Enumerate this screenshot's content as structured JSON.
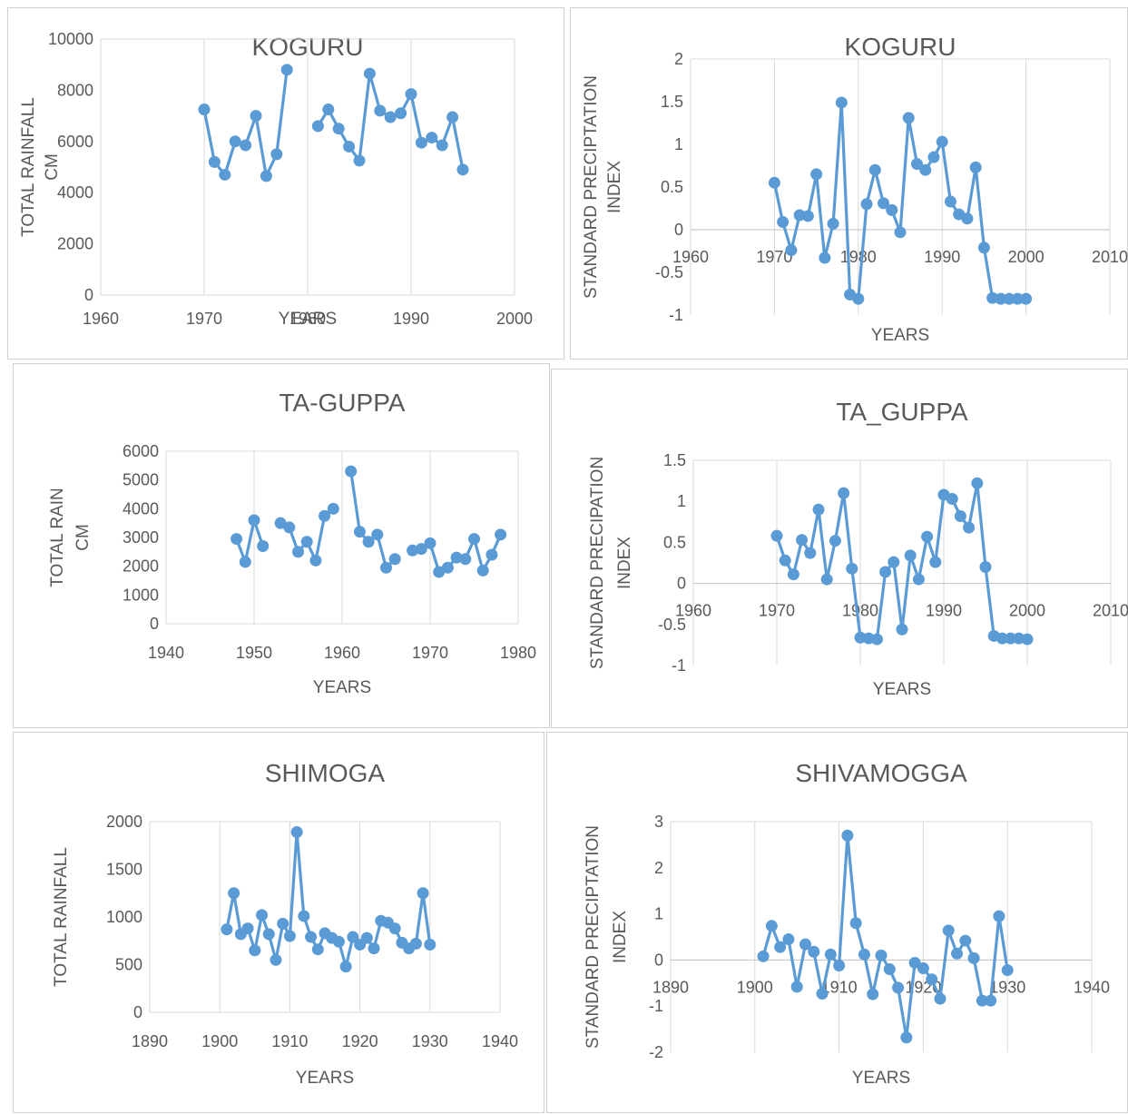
{
  "chart_data": [
    {
      "type": "line",
      "title": "KOGURU",
      "xlabel": "YEARS",
      "ylabel": [
        "TOTAL RAINFALL",
        "CM"
      ],
      "xlim": [
        1960,
        2000
      ],
      "ylim": [
        0,
        10000
      ],
      "xticks": [
        "1960",
        "1970",
        "1980",
        "1990",
        "2000"
      ],
      "yticks": [
        "0",
        "2000",
        "4000",
        "6000",
        "8000",
        "10000"
      ],
      "grid": "vertical",
      "color": "#5b9bd5",
      "segments": [
        {
          "x": [
            1970,
            1971,
            1972,
            1973,
            1974,
            1975,
            1976,
            1977,
            1978
          ],
          "y": [
            7250,
            5200,
            4700,
            6000,
            5850,
            7000,
            4650,
            5500,
            8800
          ]
        },
        {
          "x": [
            1981,
            1982,
            1983,
            1984,
            1985,
            1986,
            1987,
            1988,
            1989,
            1990,
            1991,
            1992,
            1993,
            1994,
            1995
          ],
          "y": [
            6600,
            7250,
            6500,
            5800,
            5250,
            8650,
            7200,
            6950,
            7100,
            7850,
            5950,
            6150,
            5850,
            6950,
            4900
          ]
        }
      ]
    },
    {
      "type": "line",
      "title": "KOGURU",
      "xlabel": "YEARS",
      "ylabel": [
        "STANDARD PRECIPTATION",
        "INDEX"
      ],
      "xlim": [
        1960,
        2010
      ],
      "ylim": [
        -1,
        2
      ],
      "xticks": [
        "1960",
        "1970",
        "1980",
        "1990",
        "2000",
        "2010"
      ],
      "yticks": [
        "-1",
        "-0.5",
        "0",
        "0.5",
        "1",
        "1.5",
        "2"
      ],
      "grid": "vertical",
      "color": "#5b9bd5",
      "segments": [
        {
          "x": [
            1970,
            1971,
            1972,
            1973,
            1974,
            1975,
            1976,
            1977,
            1978,
            1979,
            1980,
            1981,
            1982,
            1983,
            1984,
            1985,
            1986,
            1987,
            1988,
            1989,
            1990,
            1991,
            1992,
            1993,
            1994,
            1995,
            1996,
            1997,
            1998,
            1999,
            2000
          ],
          "y": [
            0.55,
            0.09,
            -0.24,
            0.17,
            0.16,
            0.65,
            -0.33,
            0.07,
            1.49,
            -0.76,
            -0.81,
            0.3,
            0.7,
            0.31,
            0.23,
            -0.03,
            1.31,
            0.77,
            0.7,
            0.85,
            1.03,
            0.33,
            0.18,
            0.13,
            0.73,
            -0.21,
            -0.8,
            -0.81,
            -0.81,
            -0.81,
            -0.81
          ]
        }
      ]
    },
    {
      "type": "line",
      "title": "TA-GUPPA",
      "xlabel": "YEARS",
      "ylabel": [
        "TOTAL RAIN",
        "CM"
      ],
      "xlim": [
        1940,
        1980
      ],
      "ylim": [
        0,
        6000
      ],
      "xticks": [
        "1940",
        "1950",
        "1960",
        "1970",
        "1980"
      ],
      "yticks": [
        "0",
        "1000",
        "2000",
        "3000",
        "4000",
        "5000",
        "6000"
      ],
      "grid": "vertical",
      "color": "#5b9bd5",
      "segments": [
        {
          "x": [
            1948,
            1949,
            1950,
            1951
          ],
          "y": [
            2950,
            2150,
            3600,
            2700
          ]
        },
        {
          "x": [
            1953,
            1954,
            1955,
            1956,
            1957,
            1958,
            1959
          ],
          "y": [
            3500,
            3350,
            2500,
            2850,
            2200,
            3750,
            4000
          ]
        },
        {
          "x": [
            1961,
            1962,
            1963,
            1964,
            1965,
            1966
          ],
          "y": [
            5300,
            3200,
            2850,
            3100,
            1950,
            2250
          ]
        },
        {
          "x": [
            1968,
            1969,
            1970,
            1971,
            1972,
            1973,
            1974,
            1975,
            1976,
            1977,
            1978
          ],
          "y": [
            2550,
            2600,
            2800,
            1800,
            1950,
            2300,
            2250,
            2950,
            1850,
            2400,
            3100
          ]
        }
      ]
    },
    {
      "type": "line",
      "title": "TA_GUPPA",
      "xlabel": "YEARS",
      "ylabel": [
        "STANDARD PRECIPATION",
        "INDEX"
      ],
      "xlim": [
        1960,
        2010
      ],
      "ylim": [
        -1,
        1.5
      ],
      "xticks": [
        "1960",
        "1970",
        "1980",
        "1990",
        "2000",
        "2010"
      ],
      "yticks": [
        "-1",
        "-0.5",
        "0",
        "0.5",
        "1",
        "1.5"
      ],
      "grid": "vertical",
      "color": "#5b9bd5",
      "segments": [
        {
          "x": [
            1970,
            1971,
            1972,
            1973,
            1974,
            1975,
            1976,
            1977,
            1978,
            1979,
            1980,
            1981,
            1982,
            1983,
            1984,
            1985,
            1986,
            1987,
            1988,
            1989,
            1990,
            1991,
            1992,
            1993,
            1994,
            1995,
            1996,
            1997,
            1998,
            1999,
            2000
          ],
          "y": [
            0.58,
            0.28,
            0.11,
            0.53,
            0.37,
            0.9,
            0.05,
            0.52,
            1.1,
            0.18,
            -0.66,
            -0.67,
            -0.68,
            0.14,
            0.26,
            -0.56,
            0.34,
            0.05,
            0.57,
            0.26,
            1.08,
            1.03,
            0.82,
            0.68,
            1.22,
            0.2,
            -0.64,
            -0.67,
            -0.67,
            -0.67,
            -0.68
          ]
        }
      ]
    },
    {
      "type": "line",
      "title": "SHIMOGA",
      "xlabel": "YEARS",
      "ylabel": [
        "TOTAL RAINFALL"
      ],
      "xlim": [
        1890,
        1940
      ],
      "ylim": [
        0,
        2000
      ],
      "xticks": [
        "1890",
        "1900",
        "1910",
        "1920",
        "1930",
        "1940"
      ],
      "yticks": [
        "0",
        "500",
        "1000",
        "1500",
        "2000"
      ],
      "grid": "vertical",
      "color": "#5b9bd5",
      "segments": [
        {
          "x": [
            1901,
            1902,
            1903,
            1904,
            1905,
            1906,
            1907,
            1908,
            1909,
            1910,
            1911,
            1912,
            1913,
            1914,
            1915,
            1916,
            1917,
            1918,
            1919,
            1920,
            1921,
            1922,
            1923,
            1924,
            1925,
            1926,
            1927,
            1928,
            1929,
            1930
          ],
          "y": [
            870,
            1250,
            820,
            880,
            650,
            1020,
            820,
            550,
            930,
            800,
            1890,
            1010,
            790,
            660,
            830,
            780,
            740,
            480,
            790,
            710,
            780,
            670,
            960,
            940,
            880,
            730,
            670,
            720,
            1250,
            710
          ]
        }
      ]
    },
    {
      "type": "line",
      "title": "SHIVAMOGGA",
      "xlabel": "YEARS",
      "ylabel": [
        "STANDARD PRECIPTATION",
        "INDEX"
      ],
      "xlim": [
        1890,
        1940
      ],
      "ylim": [
        -2,
        3
      ],
      "xticks": [
        "1890",
        "1900",
        "1910",
        "1920",
        "1930",
        "1940"
      ],
      "yticks": [
        "-2",
        "-1",
        "0",
        "1",
        "2",
        "3"
      ],
      "grid": "vertical",
      "color": "#5b9bd5",
      "segments": [
        {
          "x": [
            1901,
            1902,
            1903,
            1904,
            1905,
            1906,
            1907,
            1908,
            1909,
            1910,
            1911,
            1912,
            1913,
            1914,
            1915,
            1916,
            1917,
            1918,
            1919,
            1920,
            1921,
            1922,
            1923,
            1924,
            1925,
            1926,
            1927,
            1928,
            1929,
            1930
          ],
          "y": [
            0.08,
            0.74,
            0.28,
            0.45,
            -0.58,
            0.34,
            0.18,
            -0.73,
            0.12,
            -0.12,
            2.7,
            0.8,
            0.12,
            -0.74,
            0.1,
            -0.2,
            -0.6,
            -1.68,
            -0.06,
            -0.18,
            -0.42,
            -0.84,
            0.64,
            0.14,
            0.42,
            0.04,
            -0.88,
            -0.88,
            0.95,
            -0.22
          ]
        }
      ]
    }
  ]
}
